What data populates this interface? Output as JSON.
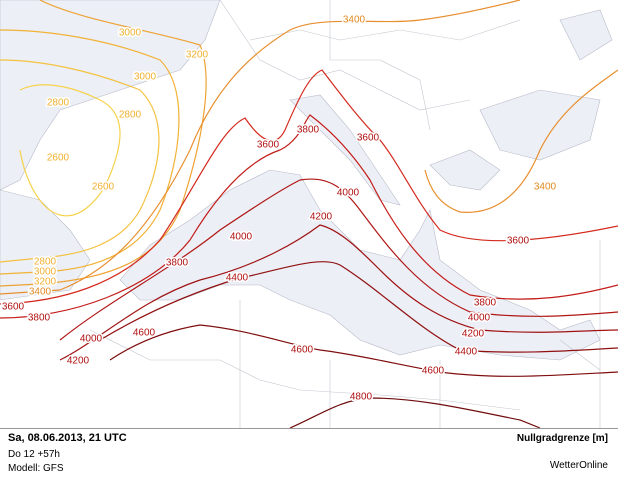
{
  "map": {
    "contour_labels": [
      "3400",
      "3000",
      "3200",
      "3000",
      "2800",
      "2800",
      "2600",
      "2600",
      "3600",
      "3800",
      "3600",
      "3400",
      "4000",
      "4200",
      "4000",
      "3600",
      "3800",
      "2800",
      "3000",
      "3200",
      "3400",
      "4400",
      "3600",
      "3800",
      "3800",
      "4000",
      "4200",
      "4000",
      "4600",
      "4600",
      "4400",
      "4200",
      "4600",
      "4800"
    ]
  },
  "footer": {
    "date": "Sa, 08.06.2013, 21 UTC",
    "run": "Do 12 +57h",
    "model": "Modell: GFS",
    "parameter": "Nullgradgrenze [m]",
    "brand": "WetterOnline"
  }
}
